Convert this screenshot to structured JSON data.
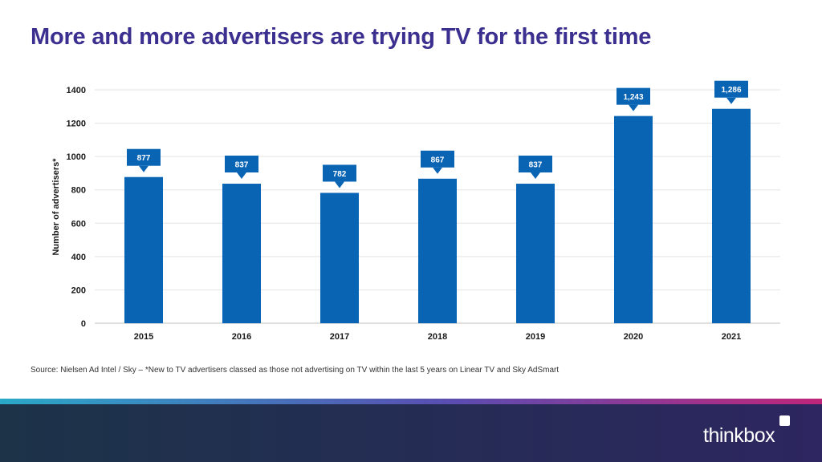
{
  "slide": {
    "title": "More and more advertisers are trying TV for the first time",
    "source": "Source: Nielsen Ad Intel / Sky – *New to TV advertisers classed as those not advertising on TV within the last 5 years on Linear TV and Sky AdSmart",
    "brand": "thinkbox"
  },
  "colors": {
    "title": "#3b2f8f",
    "bar": "#0a64b4",
    "stripe_start": "#2aa9c8",
    "stripe_mid": "#5a4db0",
    "stripe_end": "#c0257a",
    "footer_start": "#1c3348",
    "footer_end": "#2d2660"
  },
  "chart_data": {
    "type": "bar",
    "categories": [
      "2015",
      "2016",
      "2017",
      "2018",
      "2019",
      "2020",
      "2021"
    ],
    "values": [
      877,
      837,
      782,
      867,
      837,
      1243,
      1286
    ],
    "data_labels": [
      "877",
      "837",
      "782",
      "867",
      "837",
      "1,243",
      "1,286"
    ],
    "ylabel": "Number of advertisers*",
    "xlabel": "",
    "ylim": [
      0,
      1400
    ],
    "yticks": [
      "0",
      "200",
      "400",
      "600",
      "800",
      "1000",
      "1200",
      "1400"
    ],
    "grid": true,
    "legend": "none"
  }
}
